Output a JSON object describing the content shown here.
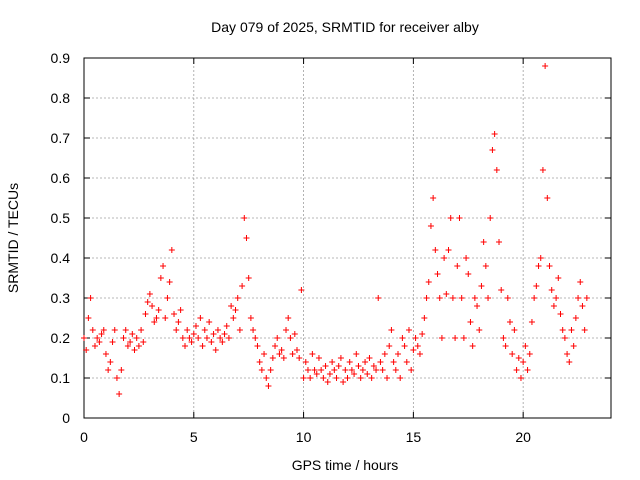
{
  "chart_data": {
    "type": "scatter",
    "title": "Day 079 of 2025, SRMTID for receiver alby",
    "xlabel": "GPS time / hours",
    "ylabel": "SRMTID / TECUs",
    "xlim": [
      0,
      24
    ],
    "ylim": [
      0,
      0.9
    ],
    "xticks": [
      0,
      5,
      10,
      15,
      20
    ],
    "yticks": [
      0,
      0.1,
      0.2,
      0.3,
      0.4,
      0.5,
      0.6,
      0.7,
      0.8,
      0.9
    ],
    "xtick_labels": [
      "0",
      "5",
      "10",
      "15",
      "20"
    ],
    "ytick_labels": [
      "0",
      "0.1",
      "0.2",
      "0.3",
      "0.4",
      "0.5",
      "0.6",
      "0.7",
      "0.8",
      "0.9"
    ],
    "grid": true,
    "marker": "+",
    "marker_color": "#ff0000",
    "series": [
      {
        "name": "SRMTID",
        "x": [
          0.0,
          0.1,
          0.2,
          0.3,
          0.4,
          0.5,
          0.6,
          0.7,
          0.8,
          0.9,
          1.0,
          1.1,
          1.2,
          1.3,
          1.4,
          1.5,
          1.6,
          1.7,
          1.8,
          1.9,
          2.0,
          2.1,
          2.2,
          2.3,
          2.4,
          2.5,
          2.6,
          2.7,
          2.8,
          2.9,
          3.0,
          3.1,
          3.2,
          3.3,
          3.4,
          3.5,
          3.6,
          3.7,
          3.8,
          3.9,
          4.0,
          4.1,
          4.2,
          4.3,
          4.4,
          4.5,
          4.6,
          4.7,
          4.8,
          4.9,
          5.0,
          5.1,
          5.2,
          5.3,
          5.4,
          5.5,
          5.6,
          5.7,
          5.8,
          5.9,
          6.0,
          6.1,
          6.2,
          6.3,
          6.4,
          6.5,
          6.6,
          6.7,
          6.8,
          6.9,
          7.0,
          7.1,
          7.2,
          7.3,
          7.4,
          7.5,
          7.6,
          7.7,
          7.8,
          7.9,
          8.0,
          8.1,
          8.2,
          8.3,
          8.4,
          8.5,
          8.6,
          8.7,
          8.8,
          8.9,
          9.0,
          9.1,
          9.2,
          9.3,
          9.4,
          9.5,
          9.6,
          9.7,
          9.8,
          9.9,
          10.0,
          10.1,
          10.2,
          10.3,
          10.4,
          10.5,
          10.6,
          10.7,
          10.8,
          10.9,
          11.0,
          11.1,
          11.2,
          11.3,
          11.4,
          11.5,
          11.6,
          11.7,
          11.8,
          11.9,
          12.0,
          12.1,
          12.2,
          12.3,
          12.4,
          12.5,
          12.6,
          12.7,
          12.8,
          12.9,
          13.0,
          13.1,
          13.2,
          13.3,
          13.4,
          13.5,
          13.6,
          13.7,
          13.8,
          13.9,
          14.0,
          14.1,
          14.2,
          14.3,
          14.4,
          14.5,
          14.6,
          14.7,
          14.8,
          14.9,
          15.0,
          15.1,
          15.2,
          15.3,
          15.4,
          15.5,
          15.6,
          15.7,
          15.8,
          15.9,
          16.0,
          16.1,
          16.2,
          16.3,
          16.4,
          16.5,
          16.6,
          16.7,
          16.8,
          16.9,
          17.0,
          17.1,
          17.2,
          17.3,
          17.4,
          17.5,
          17.6,
          17.7,
          17.8,
          17.9,
          18.0,
          18.1,
          18.2,
          18.3,
          18.4,
          18.5,
          18.6,
          18.7,
          18.8,
          18.9,
          19.0,
          19.1,
          19.2,
          19.3,
          19.4,
          19.5,
          19.6,
          19.7,
          19.8,
          19.9,
          20.0,
          20.1,
          20.2,
          20.3,
          20.4,
          20.5,
          20.6,
          20.7,
          20.8,
          20.9,
          21.0,
          21.1,
          21.2,
          21.3,
          21.4,
          21.5,
          21.6,
          21.7,
          21.8,
          21.9,
          22.0,
          22.1,
          22.2,
          22.3,
          22.4,
          22.5,
          22.6,
          22.7,
          22.8,
          22.9
        ],
        "y": [
          0.2,
          0.17,
          0.25,
          0.3,
          0.22,
          0.18,
          0.2,
          0.19,
          0.21,
          0.22,
          0.16,
          0.12,
          0.14,
          0.19,
          0.22,
          0.1,
          0.06,
          0.12,
          0.2,
          0.22,
          0.18,
          0.19,
          0.21,
          0.17,
          0.2,
          0.18,
          0.22,
          0.19,
          0.26,
          0.29,
          0.31,
          0.28,
          0.24,
          0.25,
          0.27,
          0.35,
          0.38,
          0.25,
          0.3,
          0.34,
          0.42,
          0.26,
          0.22,
          0.24,
          0.27,
          0.2,
          0.18,
          0.22,
          0.2,
          0.19,
          0.21,
          0.23,
          0.2,
          0.25,
          0.18,
          0.22,
          0.2,
          0.24,
          0.19,
          0.21,
          0.17,
          0.22,
          0.2,
          0.19,
          0.21,
          0.23,
          0.2,
          0.28,
          0.25,
          0.27,
          0.3,
          0.22,
          0.33,
          0.5,
          0.45,
          0.35,
          0.25,
          0.22,
          0.2,
          0.18,
          0.14,
          0.12,
          0.16,
          0.1,
          0.08,
          0.12,
          0.15,
          0.18,
          0.2,
          0.16,
          0.17,
          0.15,
          0.22,
          0.25,
          0.2,
          0.16,
          0.21,
          0.17,
          0.15,
          0.32,
          0.1,
          0.14,
          0.12,
          0.1,
          0.16,
          0.12,
          0.11,
          0.15,
          0.12,
          0.1,
          0.13,
          0.09,
          0.11,
          0.14,
          0.12,
          0.1,
          0.13,
          0.15,
          0.09,
          0.12,
          0.1,
          0.14,
          0.12,
          0.11,
          0.16,
          0.13,
          0.1,
          0.12,
          0.14,
          0.11,
          0.15,
          0.1,
          0.13,
          0.12,
          0.3,
          0.14,
          0.12,
          0.16,
          0.1,
          0.18,
          0.22,
          0.14,
          0.12,
          0.16,
          0.1,
          0.2,
          0.18,
          0.14,
          0.22,
          0.12,
          0.17,
          0.2,
          0.18,
          0.16,
          0.21,
          0.25,
          0.3,
          0.34,
          0.48,
          0.55,
          0.42,
          0.36,
          0.3,
          0.2,
          0.4,
          0.31,
          0.42,
          0.5,
          0.3,
          0.2,
          0.38,
          0.5,
          0.3,
          0.2,
          0.4,
          0.36,
          0.24,
          0.18,
          0.3,
          0.28,
          0.22,
          0.33,
          0.44,
          0.38,
          0.3,
          0.5,
          0.67,
          0.71,
          0.62,
          0.44,
          0.32,
          0.2,
          0.18,
          0.3,
          0.24,
          0.16,
          0.22,
          0.12,
          0.15,
          0.1,
          0.14,
          0.18,
          0.12,
          0.16,
          0.24,
          0.3,
          0.33,
          0.38,
          0.4,
          0.62,
          0.88,
          0.55,
          0.38,
          0.32,
          0.28,
          0.3,
          0.35,
          0.26,
          0.22,
          0.2,
          0.16,
          0.14,
          0.22,
          0.18,
          0.25,
          0.3,
          0.34,
          0.28,
          0.22,
          0.3
        ]
      }
    ]
  }
}
